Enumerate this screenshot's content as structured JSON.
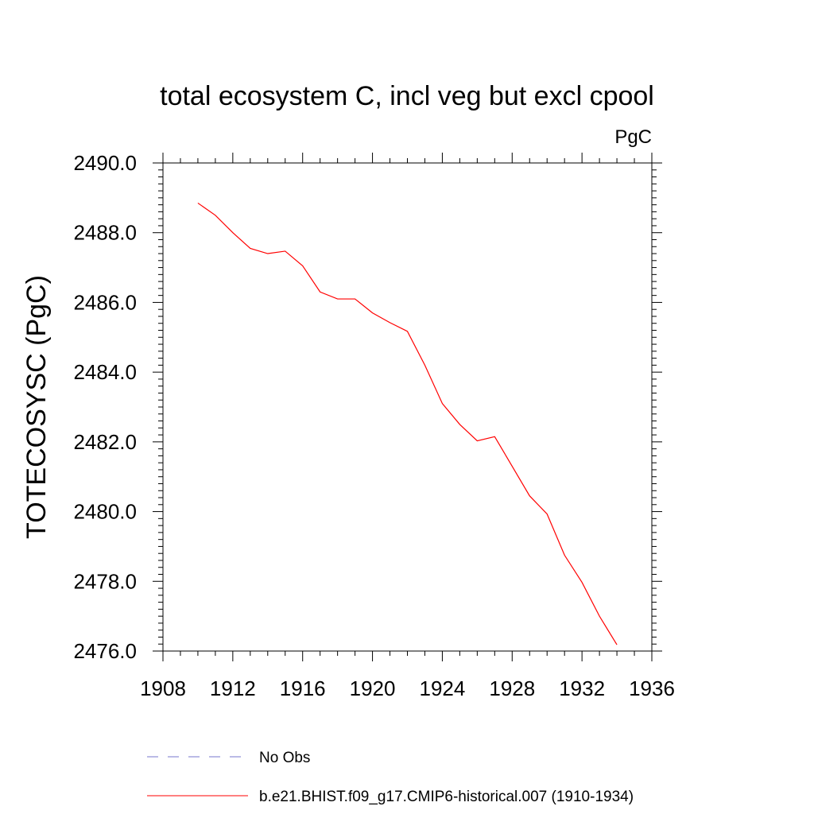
{
  "chart_data": {
    "type": "line",
    "title": "total ecosystem C, incl veg but excl cpool",
    "units": "PgC",
    "xlabel": "",
    "ylabel": "TOTECOSYSC  (PgC)",
    "xlim": [
      1908,
      1936
    ],
    "ylim": [
      2476.0,
      2490.0
    ],
    "x_ticks": [
      1908,
      1912,
      1916,
      1920,
      1924,
      1928,
      1932,
      1936
    ],
    "y_ticks": [
      2476.0,
      2478.0,
      2480.0,
      2482.0,
      2484.0,
      2486.0,
      2488.0,
      2490.0
    ],
    "x_tick_labels": [
      "1908",
      "1912",
      "1916",
      "1920",
      "1924",
      "1928",
      "1932",
      "1936"
    ],
    "y_tick_labels": [
      "2476.0",
      "2478.0",
      "2480.0",
      "2482.0",
      "2484.0",
      "2486.0",
      "2488.0",
      "2490.0"
    ],
    "grid": false,
    "legend_position": "bottom",
    "series": [
      {
        "name": "No Obs",
        "color": "#7777cc",
        "line_style": "dashed",
        "x": [],
        "y": []
      },
      {
        "name": "b.e21.BHIST.f09_g17.CMIP6-historical.007 (1910-1934)",
        "color": "#ff0000",
        "line_style": "solid",
        "x": [
          1910,
          1911,
          1912,
          1913,
          1914,
          1915,
          1916,
          1917,
          1918,
          1919,
          1920,
          1921,
          1922,
          1923,
          1924,
          1925,
          1926,
          1927,
          1928,
          1929,
          1930,
          1931,
          1932,
          1933,
          1934
        ],
        "y": [
          2488.85,
          2488.5,
          2488.0,
          2487.55,
          2487.4,
          2487.47,
          2487.05,
          2486.3,
          2486.1,
          2486.1,
          2485.7,
          2485.42,
          2485.17,
          2484.2,
          2483.1,
          2482.5,
          2482.03,
          2482.15,
          2481.3,
          2480.45,
          2479.93,
          2478.75,
          2477.97,
          2477.0,
          2476.18
        ]
      }
    ]
  }
}
